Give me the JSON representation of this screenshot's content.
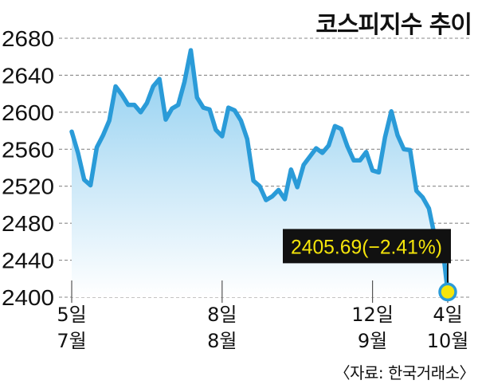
{
  "source": "〈자료: 한국거래소〉",
  "colors": {
    "line": "#2a9bd8",
    "area_top": "#86cbef",
    "area_mid": "#cbe8f8",
    "area_bottom": "#ffffff",
    "marker_fill": "#f5e50a",
    "callout_bg": "#111111",
    "callout_text": "#f5e50a",
    "connector": "#111111"
  },
  "chart_data": {
    "type": "area",
    "title": "코스피지수 추이",
    "xlabel": "",
    "ylabel": "",
    "ylim": [
      2400,
      2680
    ],
    "y_scale": "linear",
    "grid": true,
    "legend": "none",
    "y_ticks": [
      2680,
      2640,
      2600,
      2560,
      2520,
      2480,
      2440,
      2400
    ],
    "x_ticks": [
      {
        "day": "5일",
        "month": "7월"
      },
      {
        "day": "8일",
        "month": "8월"
      },
      {
        "day": "12일",
        "month": "9월"
      },
      {
        "day": "4일",
        "month": "10월"
      }
    ],
    "x": [
      "7월 5일",
      "7월 6일",
      "7월 7일",
      "7월 10일",
      "7월 11일",
      "7월 12일",
      "7월 13일",
      "7월 14일",
      "7월 17일",
      "7월 18일",
      "7월 19일",
      "7월 20일",
      "7월 21일",
      "7월 24일",
      "7월 25일",
      "7월 26일",
      "7월 27일",
      "7월 28일",
      "7월 31일",
      "8월 1일",
      "8월 2일",
      "8월 3일",
      "8월 4일",
      "8월 7일",
      "8월 8일",
      "8월 9일",
      "8월 10일",
      "8월 11일",
      "8월 14일",
      "8월 16일",
      "8월 17일",
      "8월 18일",
      "8월 21일",
      "8월 22일",
      "8월 23일",
      "8월 24일",
      "8월 25일",
      "8월 28일",
      "8월 29일",
      "8월 30일",
      "8월 31일",
      "9월 1일",
      "9월 4일",
      "9월 5일",
      "9월 6일",
      "9월 7일",
      "9월 8일",
      "9월 11일",
      "9월 12일",
      "9월 13일",
      "9월 14일",
      "9월 15일",
      "9월 18일",
      "9월 19일",
      "9월 20일",
      "9월 21일",
      "9월 22일",
      "9월 25일",
      "9월 26일",
      "9월 27일",
      "10월 4일"
    ],
    "series": [
      {
        "values": [
          2579,
          2556,
          2527,
          2521,
          2562,
          2575,
          2591,
          2628,
          2619,
          2608,
          2608,
          2600,
          2610,
          2628,
          2636,
          2592,
          2604,
          2608,
          2633,
          2667,
          2616,
          2605,
          2603,
          2581,
          2574,
          2605,
          2602,
          2591,
          2571,
          2526,
          2520,
          2505,
          2509,
          2516,
          2506,
          2538,
          2519,
          2543,
          2552,
          2561,
          2556,
          2564,
          2585,
          2582,
          2563,
          2548,
          2548,
          2557,
          2537,
          2535,
          2573,
          2601,
          2575,
          2560,
          2559,
          2515,
          2508,
          2496,
          2463,
          2465,
          2405.69
        ]
      }
    ],
    "annotation": {
      "text": "2405.69(−2.41%)"
    }
  }
}
